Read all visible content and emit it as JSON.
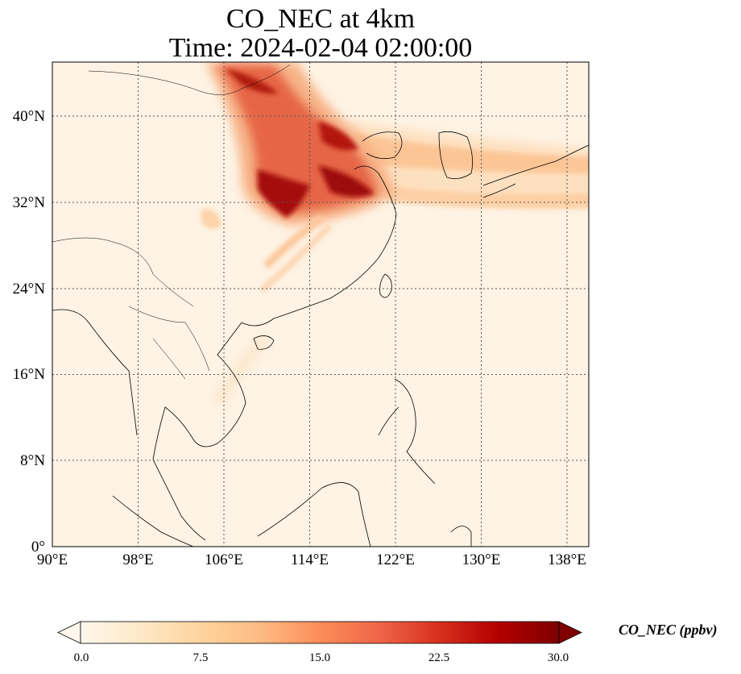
{
  "title": {
    "line1": "CO_NEC at 4km",
    "line2": "Time: 2024-02-04 02:00:00"
  },
  "map": {
    "variable": "CO_NEC",
    "height": "4km",
    "lon_range": [
      90,
      140
    ],
    "lat_range": [
      0,
      45
    ],
    "lon_ticks": [
      "90°E",
      "98°E",
      "106°E",
      "114°E",
      "122°E",
      "130°E",
      "138°E"
    ],
    "lat_ticks": [
      "0°",
      "8°N",
      "16°N",
      "24°N",
      "32°N",
      "40°N"
    ],
    "gridlines": true
  },
  "colorbar": {
    "label": "CO_NEC (ppbv)",
    "ticks": [
      "0.0",
      "7.5",
      "15.0",
      "22.5",
      "30.0"
    ],
    "range": [
      0,
      30
    ],
    "extend": "both",
    "colormap": "OrRd",
    "colors": [
      "#fff7ec",
      "#fee8c8",
      "#fdd49e",
      "#fdbb84",
      "#fc8d59",
      "#ef6548",
      "#d7301f",
      "#b30000",
      "#7f0000"
    ]
  }
}
